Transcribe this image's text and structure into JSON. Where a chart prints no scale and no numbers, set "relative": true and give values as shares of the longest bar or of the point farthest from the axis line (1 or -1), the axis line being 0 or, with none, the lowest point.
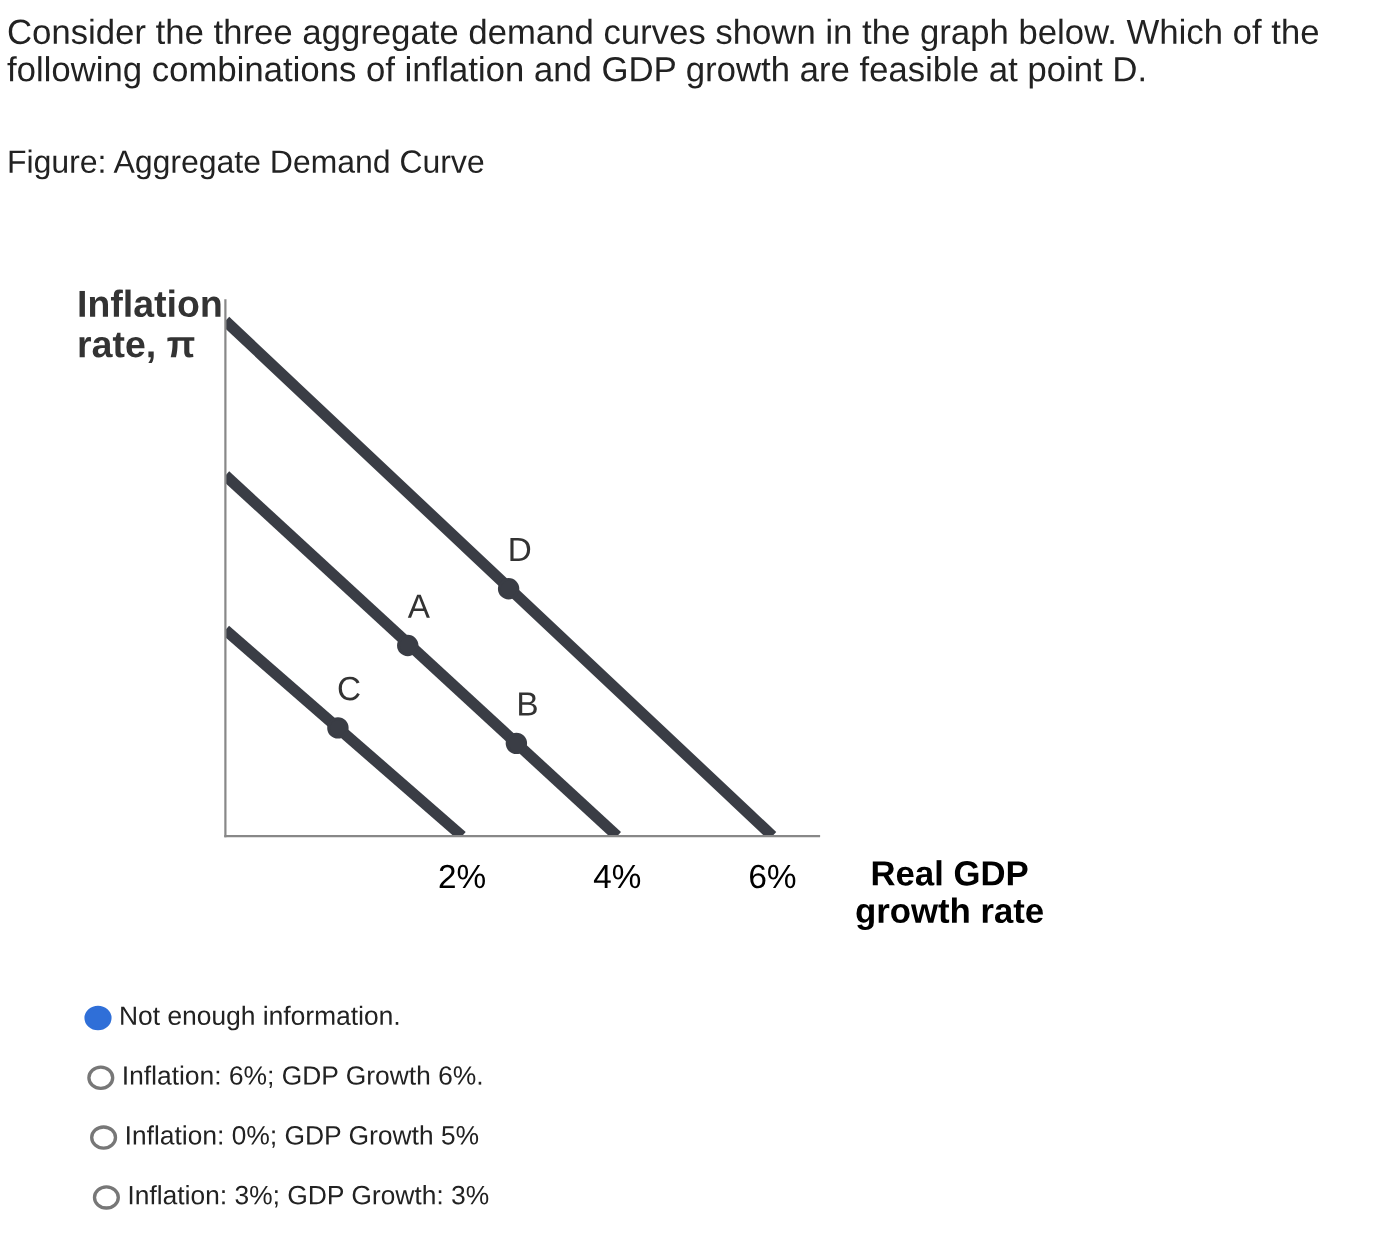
{
  "chart_data": {
    "type": "line",
    "title": "Consider the three aggregate demand curves shown in the graph below. Which of the following combinations of inflation and GDP growth are feasible at point D.",
    "subtitle": "Figure: Aggregate Demand Curve",
    "xlabel": "Real GDP\ngrowth rate",
    "ylabel": "Inflation\nrate, π",
    "relative": true,
    "xlim": [
      -1.05,
      6.6
    ],
    "xticks": [
      {
        "value": 2,
        "label": "2%"
      },
      {
        "value": 4,
        "label": "4%"
      },
      {
        "value": 6,
        "label": "6%"
      }
    ],
    "grid": false,
    "legend": false,
    "tick_labels": "x",
    "marker": "none",
    "line_style": "solid",
    "series": [
      {
        "color": "#3a3d45",
        "x": [
          -1.05,
          6
        ],
        "values": [
          1,
          0
        ]
      },
      {
        "color": "#3a3d45",
        "x": [
          -1.05,
          4
        ],
        "values": [
          0.7,
          0
        ]
      },
      {
        "color": "#3a3d45",
        "x": [
          -1.05,
          2
        ],
        "values": [
          0.4,
          0
        ]
      },
      {
        "type": "scatter",
        "marker": "circle",
        "color": "#3a3d45",
        "x": [
          2.6,
          1.3,
          2.7,
          0.4
        ],
        "values": [
          0.48,
          0.37,
          0.18,
          0.21
        ]
      }
    ],
    "annotations": [
      {
        "text": "D",
        "x": 2.6,
        "y": 0.48
      },
      {
        "text": "A",
        "x": 1.3,
        "y": 0.37
      },
      {
        "text": "B",
        "x": 2.7,
        "y": 0.18
      },
      {
        "text": "C",
        "x": 0.4,
        "y": 0.21
      },
      "Not enough information.",
      "Inflation: 6%; GDP Growth 6%.",
      "Inflation: 0%; GDP Growth 5%",
      "Inflation: 3%; GDP Growth: 3%"
    ]
  }
}
